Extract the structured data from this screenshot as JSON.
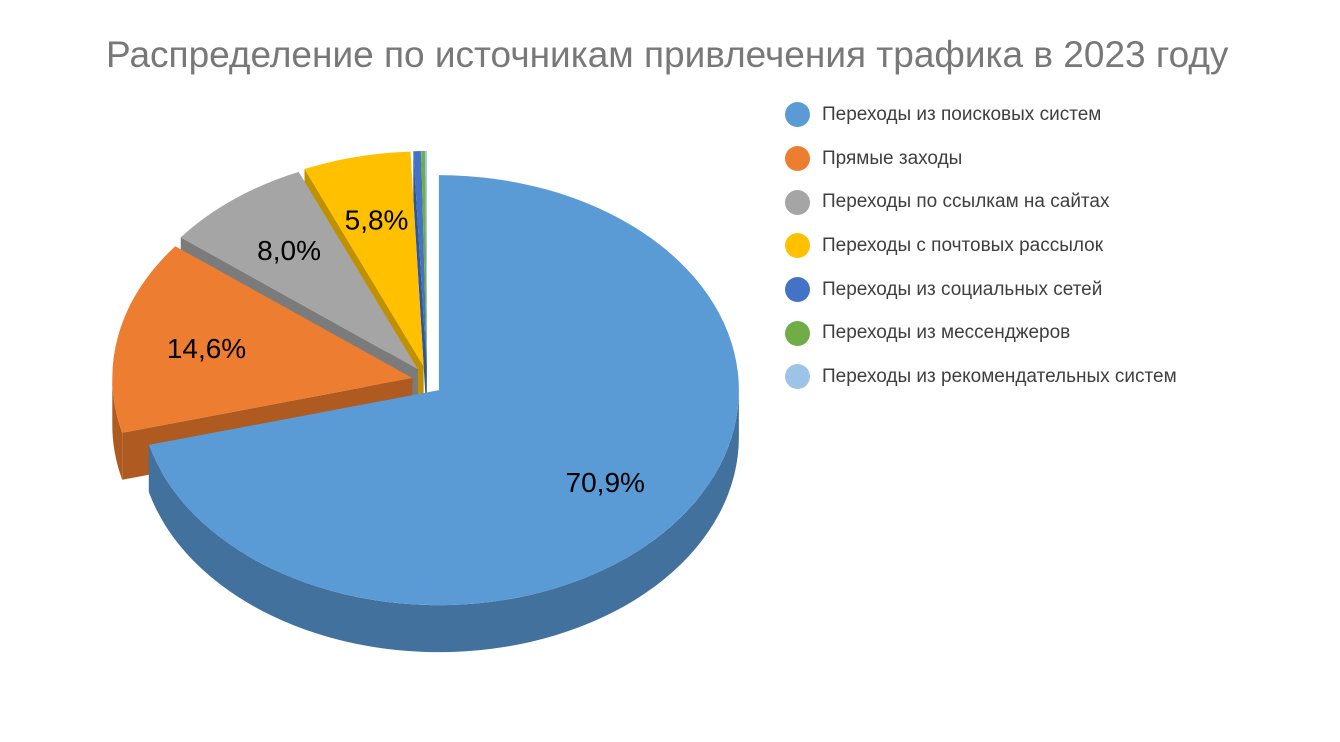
{
  "chart_data": {
    "type": "pie",
    "style": "3d-exploded",
    "title": "Распределение по источникам привлечения трафика в 2023 году",
    "title_color": "#787878",
    "legend_position": "right",
    "background": "#ffffff",
    "data_label_color": "#000000",
    "legend_text_color": "#3f3f3f",
    "slices": [
      {
        "label": "Переходы из поисковых систем",
        "value": 70.9,
        "display": "70,9%",
        "color": "#5B9BD5",
        "side_color": "#41719C"
      },
      {
        "label": "Прямые заходы",
        "value": 14.6,
        "display": "14,6%",
        "color": "#ED7D31",
        "side_color": "#AE5A21"
      },
      {
        "label": "Переходы по ссылкам на сайтах",
        "value": 8.0,
        "display": "8,0%",
        "color": "#A5A5A5",
        "side_color": "#7B7B7B"
      },
      {
        "label": "Переходы с почтовых рассылок",
        "value": 5.8,
        "display": "5,8%",
        "color": "#FFC000",
        "side_color": "#BF9000"
      },
      {
        "label": "Переходы из социальных сетей",
        "value": 0.4,
        "display": null,
        "color": "#4472C4",
        "side_color": "#2F5597"
      },
      {
        "label": "Переходы из мессенджеров",
        "value": 0.2,
        "display": null,
        "color": "#70AD47",
        "side_color": "#548235"
      },
      {
        "label": "Переходы из рекомендательных систем",
        "value": 0.1,
        "display": null,
        "color": "#9DC3E6",
        "side_color": "#6E99C8"
      }
    ]
  }
}
